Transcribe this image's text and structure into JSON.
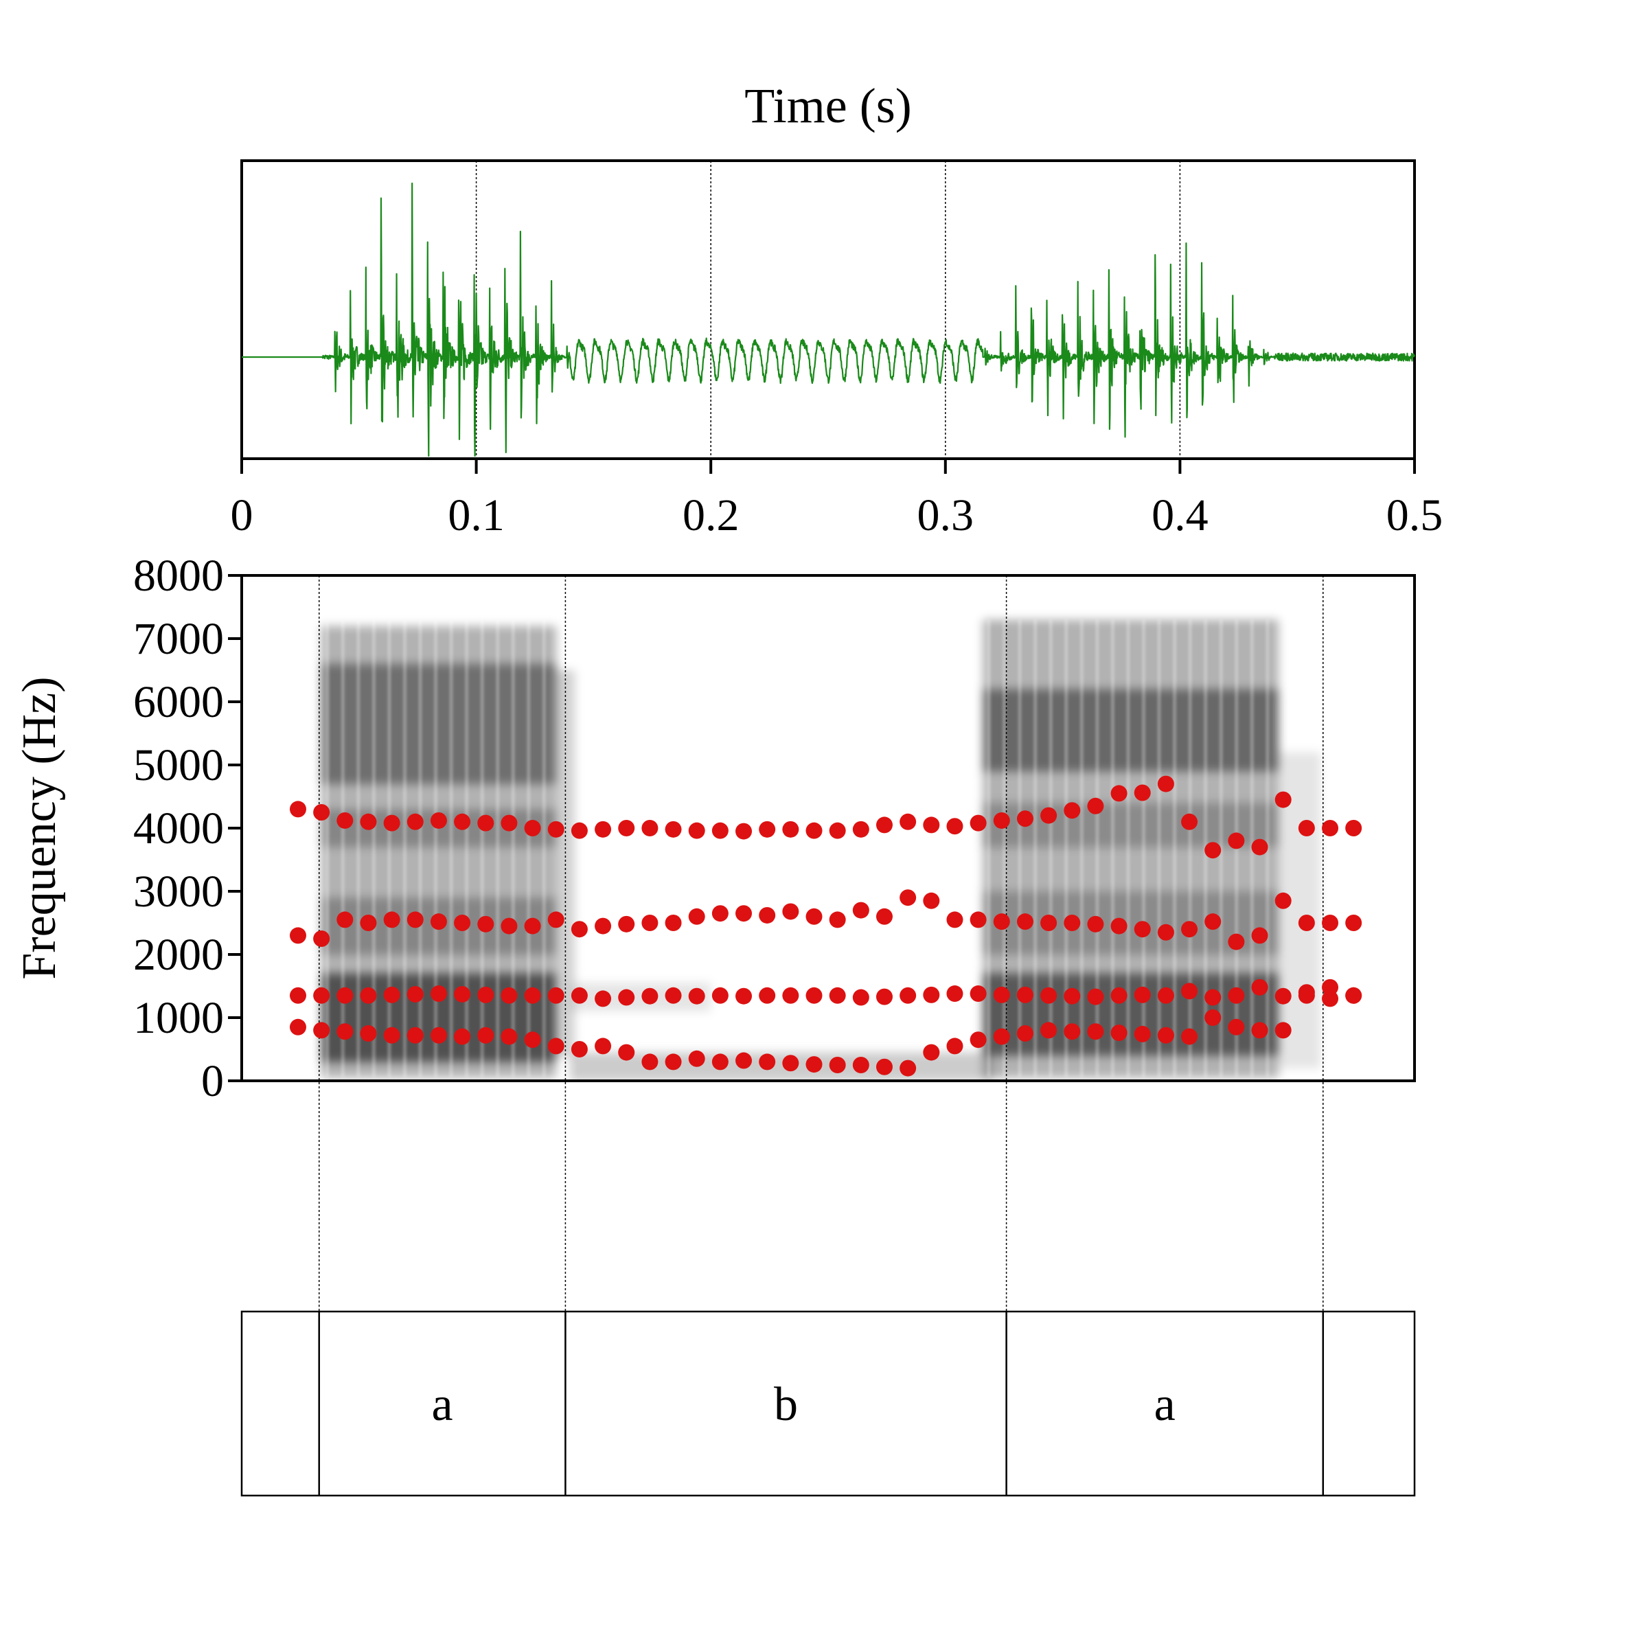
{
  "chart_data": [
    {
      "type": "line",
      "panel": "waveform",
      "title": "Time (s)",
      "xlim": [
        0,
        0.5
      ],
      "x_ticks": [
        "0",
        "0.1",
        "0.2",
        "0.3",
        "0.4",
        "0.5"
      ],
      "grid": "vertical dotted lines at 0.1 s intervals",
      "series": [
        {
          "color": "#1a8a1a",
          "segments": [
            {
              "t": [
                0.0,
                0.0345
              ],
              "amplitude": 0.0
            },
            {
              "t": [
                0.0345,
                0.14
              ],
              "amplitude": 0.95
            },
            {
              "t": [
                0.14,
                0.316
              ],
              "amplitude": 0.12
            },
            {
              "t": [
                0.316,
                0.44
              ],
              "amplitude": 0.62
            },
            {
              "t": [
                0.44,
                0.5
              ],
              "amplitude": 0.02
            }
          ]
        }
      ]
    },
    {
      "type": "scatter",
      "panel": "spectrogram",
      "ylabel": "Frequency (Hz)",
      "xlim": [
        0,
        0.5
      ],
      "ylim": [
        0,
        8000
      ],
      "y_ticks": [
        "0",
        "1000",
        "2000",
        "3000",
        "4000",
        "5000",
        "6000",
        "7000",
        "8000"
      ],
      "boundaries_s": [
        0.033,
        0.138,
        0.326,
        0.461
      ],
      "marker_color": "#dd1111",
      "formants": {
        "t": [
          0.024,
          0.034,
          0.044,
          0.054,
          0.064,
          0.074,
          0.084,
          0.094,
          0.104,
          0.114,
          0.124,
          0.134,
          0.144,
          0.154,
          0.164,
          0.174,
          0.184,
          0.194,
          0.204,
          0.214,
          0.224,
          0.234,
          0.244,
          0.254,
          0.264,
          0.274,
          0.284,
          0.294,
          0.304,
          0.314,
          0.324,
          0.334,
          0.344,
          0.354,
          0.364,
          0.374,
          0.384,
          0.394,
          0.404,
          0.414,
          0.424,
          0.434,
          0.444,
          0.454,
          0.464,
          0.474
        ],
        "F1": [
          850,
          800,
          780,
          750,
          720,
          720,
          720,
          700,
          720,
          700,
          650,
          550,
          500,
          550,
          450,
          300,
          300,
          350,
          300,
          320,
          300,
          280,
          260,
          250,
          250,
          220,
          200,
          450,
          550,
          650,
          700,
          750,
          800,
          780,
          780,
          760,
          740,
          720,
          700,
          1000,
          850,
          800,
          800,
          1400,
          1300,
          1350
        ],
        "F2": [
          1350,
          1350,
          1350,
          1350,
          1360,
          1370,
          1380,
          1370,
          1360,
          1350,
          1350,
          1350,
          1350,
          1300,
          1320,
          1340,
          1350,
          1340,
          1350,
          1340,
          1350,
          1350,
          1350,
          1350,
          1320,
          1330,
          1350,
          1360,
          1380,
          1380,
          1360,
          1360,
          1350,
          1340,
          1330,
          1350,
          1360,
          1350,
          1420,
          1320,
          1350,
          1480,
          1340,
          1350,
          1480,
          1350
        ],
        "F3": [
          2300,
          2250,
          2550,
          2500,
          2550,
          2550,
          2520,
          2500,
          2480,
          2450,
          2450,
          2550,
          2400,
          2450,
          2480,
          2500,
          2500,
          2600,
          2650,
          2650,
          2620,
          2680,
          2600,
          2550,
          2700,
          2600,
          2900,
          2850,
          2550,
          2550,
          2520,
          2520,
          2500,
          2500,
          2480,
          2450,
          2400,
          2350,
          2400,
          2520,
          2200,
          2300,
          2850,
          2500,
          2500,
          2500
        ],
        "F4": [
          4300,
          4250,
          4120,
          4100,
          4080,
          4100,
          4120,
          4100,
          4080,
          4080,
          4000,
          3980,
          3960,
          3980,
          4000,
          4000,
          3980,
          3960,
          3960,
          3950,
          3980,
          3980,
          3960,
          3960,
          3980,
          4050,
          4100,
          4050,
          4030,
          4080,
          4120,
          4150,
          4200,
          4280,
          4350,
          4550,
          4560,
          4700,
          4100,
          3650,
          3800,
          3700,
          4450,
          4000,
          4000,
          4000
        ]
      }
    },
    {
      "type": "table",
      "panel": "textgrid",
      "tier_labels": [
        "",
        "a",
        "b",
        "a",
        ""
      ]
    }
  ]
}
